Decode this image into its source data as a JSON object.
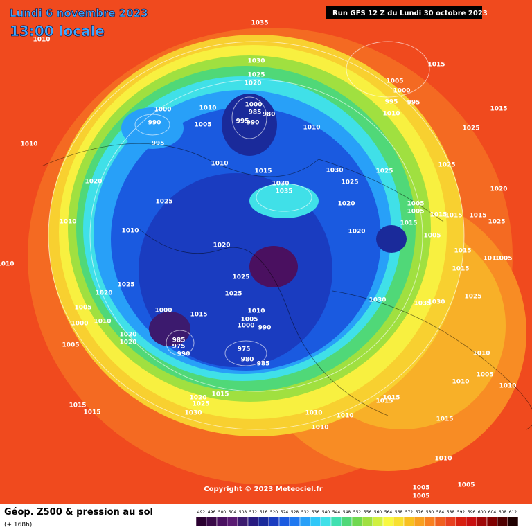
{
  "header": {
    "date": "Lundi 6 novembre 2023",
    "time": "13:00 locale",
    "run": "Run GFS 12 Z du Lundi 30 octobre 2023"
  },
  "map": {
    "copyright": "Copyright © 2023 Meteociel.fr",
    "isobar_labels": [
      "1035",
      "1010",
      "1015",
      "1030",
      "1025",
      "1020",
      "1005",
      "1000",
      "995",
      "995",
      "1010",
      "1000",
      "1010",
      "1000",
      "985",
      "980",
      "995",
      "990",
      "990",
      "1005",
      "1010",
      "1015",
      "1025",
      "995",
      "1010",
      "1010",
      "1015",
      "1030",
      "1025",
      "1025",
      "1020",
      "1030",
      "1035",
      "1025",
      "1020",
      "1025",
      "1020",
      "1005",
      "1005",
      "1015",
      "1015",
      "1015",
      "1025",
      "1010",
      "1010",
      "1020",
      "1015",
      "1005",
      "1020",
      "1015",
      "1010",
      "1025",
      "1015",
      "1010",
      "1005",
      "1025",
      "1020",
      "1025",
      "1030",
      "1035",
      "1030",
      "1025",
      "1005",
      "1015",
      "1010",
      "1005",
      "1000",
      "990",
      "1000",
      "1000",
      "1010",
      "1020",
      "1020",
      "985",
      "975",
      "990",
      "1005",
      "975",
      "980",
      "985",
      "1010",
      "1005",
      "1010",
      "1010",
      "1015",
      "1020",
      "1025",
      "1030",
      "1015",
      "1015",
      "1015",
      "1015",
      "1010",
      "1010",
      "1010",
      "1015",
      "1010",
      "1005",
      "1005",
      "1005"
    ]
  },
  "footer": {
    "title": "Géop. Z500 & pression au sol",
    "lead": "(+ 168h)"
  },
  "legend": {
    "levels": [
      492,
      496,
      500,
      504,
      508,
      512,
      516,
      520,
      524,
      528,
      532,
      536,
      540,
      544,
      548,
      552,
      556,
      560,
      564,
      568,
      572,
      576,
      580,
      584,
      588,
      592,
      596,
      600,
      604,
      608,
      612
    ],
    "colors": [
      "#2a0030",
      "#3a0a48",
      "#4a1060",
      "#5a1a72",
      "#3c1a6e",
      "#281a80",
      "#1a2a9a",
      "#1a3cc0",
      "#1a5ae0",
      "#1e78f0",
      "#28a0f8",
      "#30c8f8",
      "#40e0e8",
      "#40e0b0",
      "#50d878",
      "#70d850",
      "#a0e040",
      "#d0f040",
      "#f8f840",
      "#f8e030",
      "#f8c020",
      "#f8a020",
      "#f88020",
      "#f06020",
      "#e84020",
      "#d82010",
      "#c81010",
      "#a00808",
      "#800000",
      "#500000",
      "#200000"
    ]
  }
}
